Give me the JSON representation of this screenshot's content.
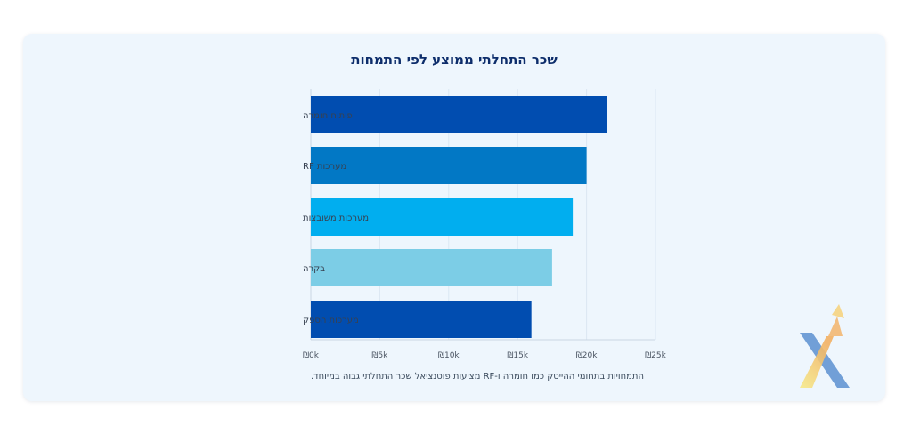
{
  "chart_data": {
    "type": "bar",
    "orientation": "horizontal",
    "title": "שכר התחלתי ממוצע לפי התמחות",
    "categories": [
      "פיתוח חומרה",
      "מערכות RF",
      "מערכות משובצות",
      "בקרה",
      "מערכות הספק"
    ],
    "values": [
      21500,
      20000,
      19000,
      17500,
      16000
    ],
    "colors": [
      "#014db0",
      "#0278c5",
      "#01aeef",
      "#7ccde6",
      "#014db0"
    ],
    "xlim": [
      0,
      25000
    ],
    "xticks": [
      "₪0k",
      "₪5k",
      "₪10k",
      "₪15k",
      "₪20k",
      "₪25k"
    ],
    "grid": true,
    "xlabel": "",
    "ylabel": ""
  },
  "caption": "התמחויות בתחומי ההייטק כמו חומרה ו-RF מציעות פוטנציאל שכר התחלתי גבוה במיוחד.",
  "logo": {
    "icon": "x-arrow-logo-icon",
    "colors": [
      "#f6ea8a",
      "#f2b062",
      "#5b8fd0"
    ]
  }
}
